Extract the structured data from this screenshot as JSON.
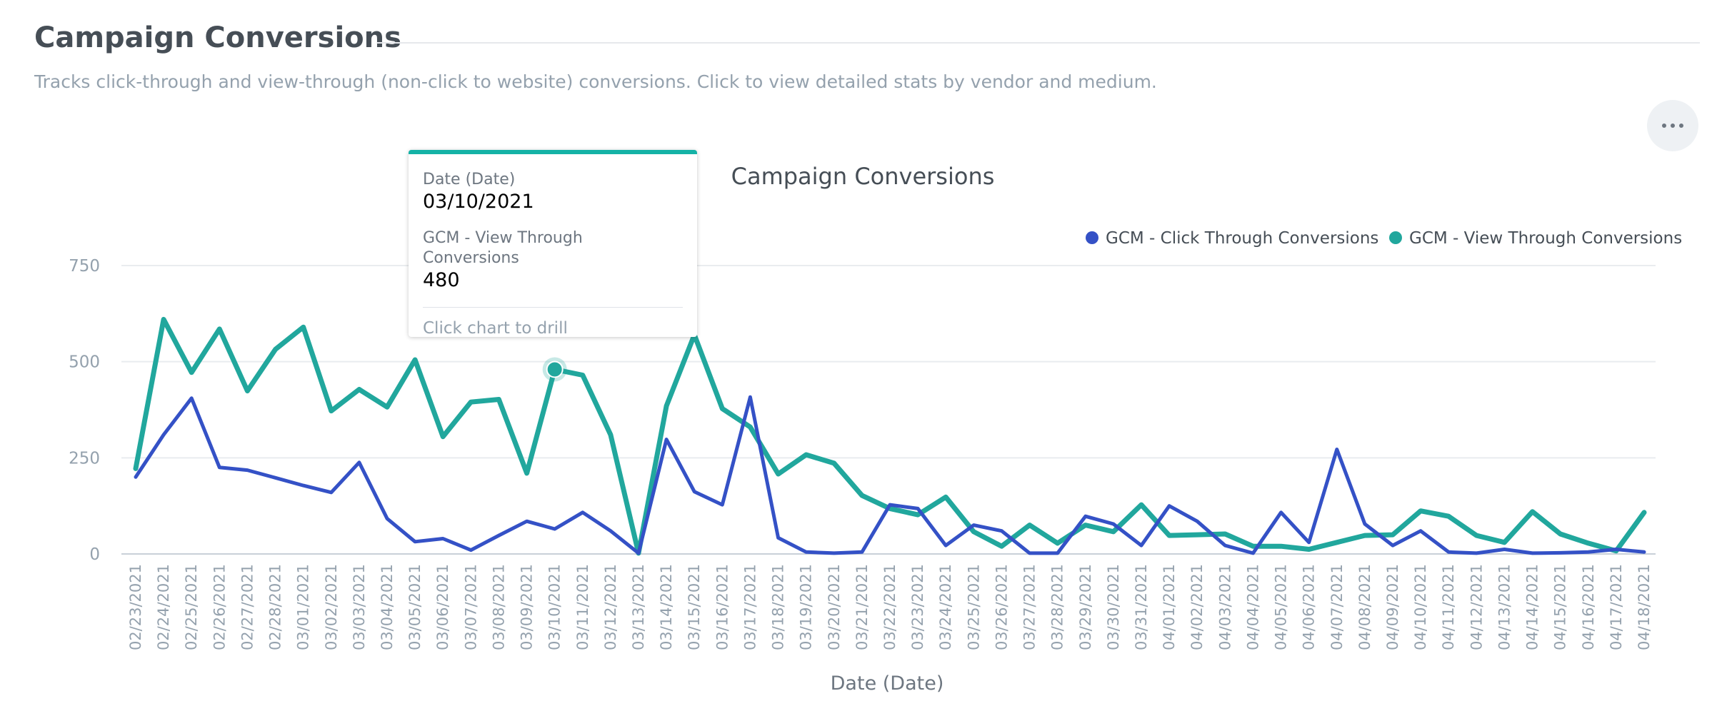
{
  "header": {
    "title": "Campaign Conversions",
    "description": "Tracks click-through and view-through (non-click to website) conversions. Click to view detailed stats by vendor and medium."
  },
  "menu": {
    "icon": "more-horizontal-icon"
  },
  "tooltip": {
    "date_label": "Date (Date)",
    "date_value": "03/10/2021",
    "series_label": "GCM - View Through Conversions",
    "series_value": "480",
    "hint": "Click chart to drill"
  },
  "colors": {
    "click_through": "#3451c6",
    "view_through": "#21a79d",
    "tooltip_accent": "#14b2a6"
  },
  "chart_data": {
    "type": "line",
    "title": "Campaign Conversions",
    "xlabel": "Date (Date)",
    "ylabel": "",
    "ylim": [
      0,
      750
    ],
    "yticks": [
      0,
      250,
      500,
      750
    ],
    "grid": true,
    "legend_position": "top-right",
    "x": [
      "02/23/2021",
      "02/24/2021",
      "02/25/2021",
      "02/26/2021",
      "02/27/2021",
      "02/28/2021",
      "03/01/2021",
      "03/02/2021",
      "03/03/2021",
      "03/04/2021",
      "03/05/2021",
      "03/06/2021",
      "03/07/2021",
      "03/08/2021",
      "03/09/2021",
      "03/10/2021",
      "03/11/2021",
      "03/12/2021",
      "03/13/2021",
      "03/14/2021",
      "03/15/2021",
      "03/16/2021",
      "03/17/2021",
      "03/18/2021",
      "03/19/2021",
      "03/20/2021",
      "03/21/2021",
      "03/22/2021",
      "03/23/2021",
      "03/24/2021",
      "03/25/2021",
      "03/26/2021",
      "03/27/2021",
      "03/28/2021",
      "03/29/2021",
      "03/30/2021",
      "03/31/2021",
      "04/01/2021",
      "04/02/2021",
      "04/03/2021",
      "04/04/2021",
      "04/05/2021",
      "04/06/2021",
      "04/07/2021",
      "04/08/2021",
      "04/09/2021",
      "04/10/2021",
      "04/11/2021",
      "04/12/2021",
      "04/13/2021",
      "04/14/2021",
      "04/15/2021",
      "04/16/2021",
      "04/17/2021",
      "04/18/2021"
    ],
    "series": [
      {
        "name": "GCM - Click Through Conversions",
        "color": "#3451c6",
        "values": [
          200,
          310,
          405,
          225,
          218,
          198,
          178,
          160,
          238,
          92,
          32,
          40,
          10,
          48,
          85,
          65,
          108,
          60,
          2,
          298,
          162,
          128,
          408,
          42,
          5,
          2,
          5,
          128,
          118,
          22,
          75,
          60,
          2,
          2,
          98,
          78,
          22,
          125,
          85,
          22,
          2,
          108,
          30,
          272,
          78,
          22,
          60,
          5,
          2,
          12,
          2,
          3,
          5,
          12,
          5
        ]
      },
      {
        "name": "GCM - View Through Conversions",
        "color": "#21a79d",
        "values": [
          222,
          610,
          472,
          585,
          424,
          532,
          590,
          372,
          428,
          382,
          505,
          305,
          395,
          402,
          210,
          480,
          465,
          310,
          2,
          385,
          570,
          378,
          330,
          208,
          258,
          236,
          152,
          118,
          102,
          148,
          58,
          20,
          75,
          28,
          75,
          58,
          128,
          48,
          50,
          52,
          20,
          20,
          12,
          30,
          48,
          50,
          112,
          98,
          48,
          30,
          110,
          52,
          28,
          8,
          108
        ]
      }
    ]
  }
}
